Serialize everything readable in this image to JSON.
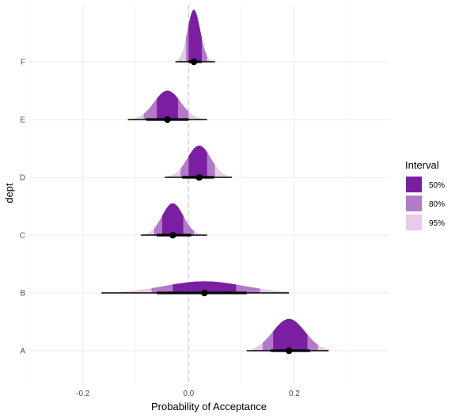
{
  "chart_data": {
    "type": "halfeye",
    "xlabel": "Probability of Acceptance",
    "ylabel": "dept",
    "xlim": [
      -0.3,
      0.38
    ],
    "x_ticks": [
      {
        "value": -0.2,
        "label": "-0.2"
      },
      {
        "value": 0.0,
        "label": "0.0"
      },
      {
        "value": 0.2,
        "label": "0.2"
      }
    ],
    "reference_line": 0,
    "grid": true,
    "legend": {
      "title": "Interval",
      "position": "right",
      "items": [
        {
          "label": "50%",
          "color": "#7b1fa2"
        },
        {
          "label": "80%",
          "color": "#b27bc7"
        },
        {
          "label": "95%",
          "color": "#e6cce9"
        }
      ]
    },
    "categories": [
      "A",
      "B",
      "C",
      "D",
      "E",
      "F"
    ],
    "series": [
      {
        "category": "A",
        "median": 0.19,
        "i50": [
          0.16,
          0.225
        ],
        "i80": [
          0.14,
          0.245
        ],
        "i95": [
          0.12,
          0.265
        ],
        "range": [
          0.11,
          0.265
        ],
        "inner": [
          0.155,
          0.23
        ],
        "sd": 0.03,
        "height": 0.55
      },
      {
        "category": "B",
        "median": 0.03,
        "i50": [
          -0.03,
          0.09
        ],
        "i80": [
          -0.07,
          0.135
        ],
        "i95": [
          -0.13,
          0.19
        ],
        "range": [
          -0.165,
          0.19
        ],
        "inner": [
          -0.06,
          0.11
        ],
        "sd": 0.075,
        "height": 0.2
      },
      {
        "category": "C",
        "median": -0.03,
        "i50": [
          -0.05,
          -0.01
        ],
        "i80": [
          -0.065,
          0.01
        ],
        "i95": [
          -0.09,
          0.035
        ],
        "range": [
          -0.09,
          0.035
        ],
        "inner": [
          -0.06,
          0.005
        ],
        "sd": 0.02,
        "height": 0.55
      },
      {
        "category": "D",
        "median": 0.02,
        "i50": [
          0.0,
          0.035
        ],
        "i80": [
          -0.015,
          0.05
        ],
        "i95": [
          -0.045,
          0.08
        ],
        "range": [
          -0.045,
          0.082
        ],
        "inner": [
          -0.012,
          0.048
        ],
        "sd": 0.022,
        "height": 0.55
      },
      {
        "category": "E",
        "median": -0.04,
        "i50": [
          -0.06,
          -0.02
        ],
        "i80": [
          -0.085,
          0.0
        ],
        "i95": [
          -0.115,
          0.03
        ],
        "range": [
          -0.115,
          0.035
        ],
        "inner": [
          -0.08,
          0.0
        ],
        "sd": 0.025,
        "height": 0.5
      },
      {
        "category": "F",
        "median": 0.01,
        "i50": [
          0.0,
          0.025
        ],
        "i80": [
          -0.005,
          0.035
        ],
        "i95": [
          -0.02,
          0.05
        ],
        "range": [
          -0.025,
          0.05
        ],
        "inner": [
          0.0,
          0.025
        ],
        "sd": 0.012,
        "height": 0.9
      }
    ]
  }
}
